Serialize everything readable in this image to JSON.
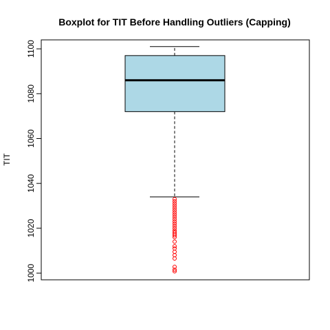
{
  "chart_data": {
    "type": "boxplot",
    "title": "Boxplot for TIT Before Handling Outliers (Capping)",
    "xlabel": "",
    "ylabel": "TIT",
    "ylim": [
      997,
      1104
    ],
    "y_ticks": [
      1000,
      1020,
      1040,
      1060,
      1080,
      1100
    ],
    "grid": false,
    "box": {
      "lower_whisker": 1034,
      "q1": 1072,
      "median": 1086,
      "q3": 1097,
      "upper_whisker": 1101
    },
    "outliers": [
      1000.8,
      1001.5,
      1002.8,
      1006.5,
      1008,
      1009.5,
      1011,
      1012,
      1014,
      1016,
      1016.8,
      1017.5,
      1018.2,
      1019,
      1020,
      1021,
      1022,
      1023,
      1024,
      1025,
      1026,
      1027,
      1028,
      1029,
      1030,
      1031,
      1032,
      1033
    ],
    "colors": {
      "box_fill": "#add8e6",
      "outlier": "#ff0000",
      "median_line": "#000000"
    }
  }
}
